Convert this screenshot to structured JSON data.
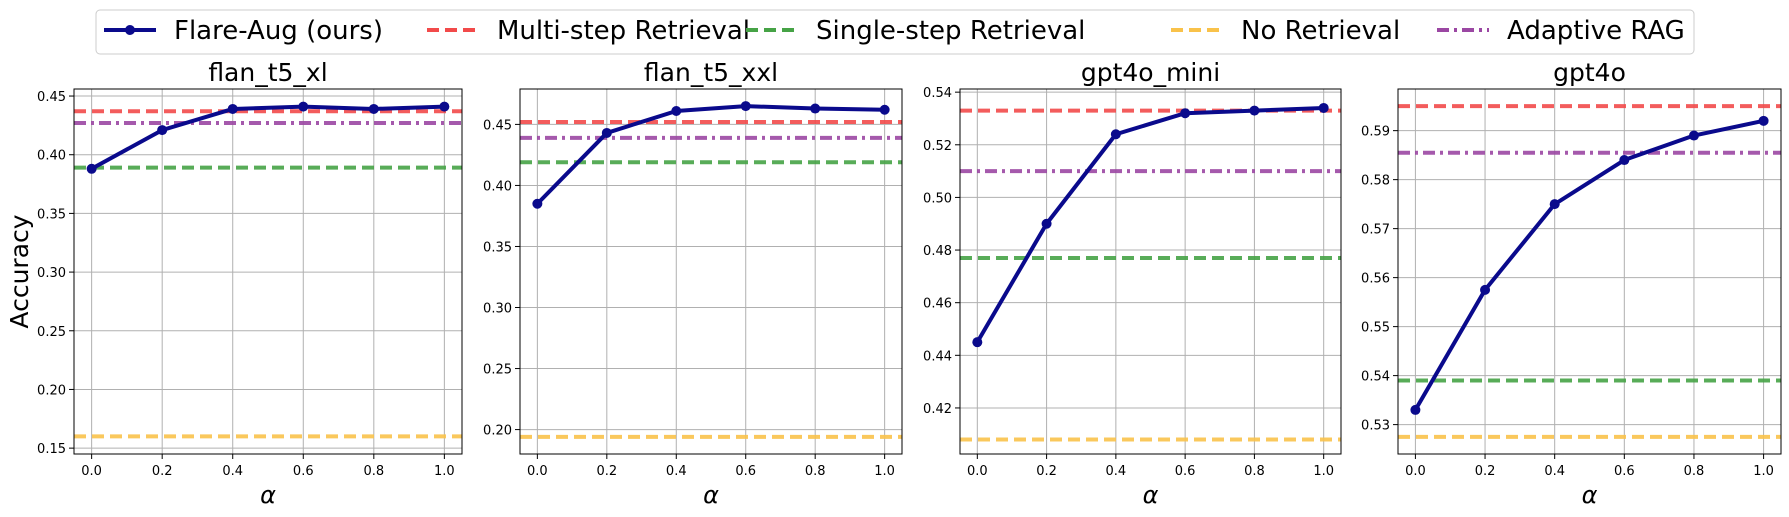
{
  "legend": {
    "items": [
      {
        "label": "Flare-Aug (ours)",
        "style": "solid-marker",
        "color": "#0a0a8c"
      },
      {
        "label": "Multi-step Retrieval",
        "style": "dashed",
        "color": "#f24a4a"
      },
      {
        "label": "Single-step Retrieval",
        "style": "dashed",
        "color": "#46a346"
      },
      {
        "label": "No Retrieval",
        "style": "dashed",
        "color": "#f9c24a"
      },
      {
        "label": "Adaptive RAG",
        "style": "dashdot",
        "color": "#9b47a3"
      }
    ]
  },
  "chart_data": [
    {
      "type": "line",
      "title": "flan_t5_xl",
      "xlabel": "α",
      "ylabel": "Accuracy",
      "x": [
        0.0,
        0.2,
        0.4,
        0.6,
        0.8,
        1.0
      ],
      "xticks": [
        "0.0",
        "0.2",
        "0.4",
        "0.6",
        "0.8",
        "1.0"
      ],
      "xlim": [
        -0.05,
        1.05
      ],
      "ylim": [
        0.145,
        0.456
      ],
      "yticks": [
        "0.15",
        "0.20",
        "0.25",
        "0.30",
        "0.35",
        "0.40",
        "0.45"
      ],
      "grid": true,
      "series": [
        {
          "name": "Flare-Aug (ours)",
          "values": [
            0.388,
            0.421,
            0.439,
            0.441,
            0.439,
            0.441
          ]
        }
      ],
      "baselines": [
        {
          "name": "Multi-step Retrieval",
          "value": 0.437
        },
        {
          "name": "Single-step Retrieval",
          "value": 0.389
        },
        {
          "name": "No Retrieval",
          "value": 0.16
        },
        {
          "name": "Adaptive RAG",
          "value": 0.427
        }
      ]
    },
    {
      "type": "line",
      "title": "flan_t5_xxl",
      "xlabel": "α",
      "ylabel": "",
      "x": [
        0.0,
        0.2,
        0.4,
        0.6,
        0.8,
        1.0
      ],
      "xticks": [
        "0.0",
        "0.2",
        "0.4",
        "0.6",
        "0.8",
        "1.0"
      ],
      "xlim": [
        -0.05,
        1.05
      ],
      "ylim": [
        0.18,
        0.479
      ],
      "yticks": [
        "0.20",
        "0.25",
        "0.30",
        "0.35",
        "0.40",
        "0.45"
      ],
      "grid": true,
      "series": [
        {
          "name": "Flare-Aug (ours)",
          "values": [
            0.385,
            0.443,
            0.461,
            0.465,
            0.463,
            0.462
          ]
        }
      ],
      "baselines": [
        {
          "name": "Multi-step Retrieval",
          "value": 0.452
        },
        {
          "name": "Single-step Retrieval",
          "value": 0.419
        },
        {
          "name": "No Retrieval",
          "value": 0.194
        },
        {
          "name": "Adaptive RAG",
          "value": 0.439
        }
      ]
    },
    {
      "type": "line",
      "title": "gpt4o_mini",
      "xlabel": "α",
      "ylabel": "",
      "x": [
        0.0,
        0.2,
        0.4,
        0.6,
        0.8,
        1.0
      ],
      "xticks": [
        "0.0",
        "0.2",
        "0.4",
        "0.6",
        "0.8",
        "1.0"
      ],
      "xlim": [
        -0.05,
        1.05
      ],
      "ylim": [
        0.4025,
        0.5412
      ],
      "yticks": [
        "0.42",
        "0.44",
        "0.46",
        "0.48",
        "0.50",
        "0.52",
        "0.54"
      ],
      "grid": true,
      "series": [
        {
          "name": "Flare-Aug (ours)",
          "values": [
            0.445,
            0.49,
            0.524,
            0.532,
            0.533,
            0.534
          ]
        }
      ],
      "baselines": [
        {
          "name": "Multi-step Retrieval",
          "value": 0.533
        },
        {
          "name": "Single-step Retrieval",
          "value": 0.477
        },
        {
          "name": "No Retrieval",
          "value": 0.408
        },
        {
          "name": "Adaptive RAG",
          "value": 0.51
        }
      ]
    },
    {
      "type": "line",
      "title": "gpt4o",
      "xlabel": "α",
      "ylabel": "",
      "x": [
        0.0,
        0.2,
        0.4,
        0.6,
        0.8,
        1.0
      ],
      "xticks": [
        "0.0",
        "0.2",
        "0.4",
        "0.6",
        "0.8",
        "1.0"
      ],
      "xlim": [
        -0.05,
        1.05
      ],
      "ylim": [
        0.524,
        0.5985
      ],
      "yticks": [
        "0.53",
        "0.54",
        "0.55",
        "0.56",
        "0.57",
        "0.58",
        "0.59"
      ],
      "grid": true,
      "series": [
        {
          "name": "Flare-Aug (ours)",
          "values": [
            0.533,
            0.5575,
            0.575,
            0.584,
            0.589,
            0.592
          ]
        }
      ],
      "baselines": [
        {
          "name": "Multi-step Retrieval",
          "value": 0.595
        },
        {
          "name": "Single-step Retrieval",
          "value": 0.539
        },
        {
          "name": "No Retrieval",
          "value": 0.5275
        },
        {
          "name": "Adaptive RAG",
          "value": 0.5855
        }
      ]
    }
  ]
}
